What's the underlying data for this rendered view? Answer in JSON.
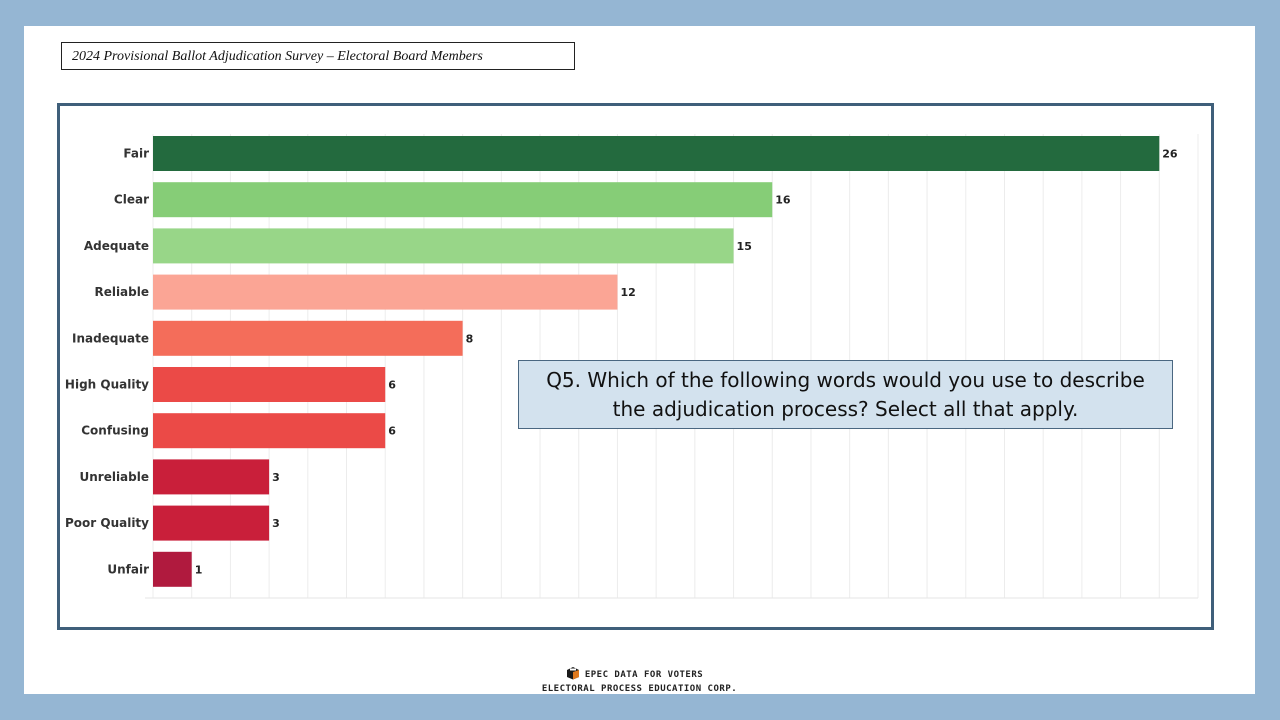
{
  "header": {
    "title": "2024 Provisional Ballot Adjudication Survey – Electoral Board Members"
  },
  "question": {
    "text": "Q5. Which of the following words would you use to describe the adjudication process? Select all that apply."
  },
  "footer": {
    "line1": "EPEC DATA FOR VOTERS",
    "line2": "ELECTORAL PROCESS EDUCATION CORP.",
    "logo_icon": "ballot-box-icon"
  },
  "chart_data": {
    "type": "bar",
    "orientation": "horizontal",
    "categories": [
      "Fair",
      "Clear",
      "Adequate",
      "Reliable",
      "Inadequate",
      "High Quality",
      "Confusing",
      "Unreliable",
      "Poor Quality",
      "Unfair"
    ],
    "values": [
      26,
      16,
      15,
      12,
      8,
      6,
      6,
      3,
      3,
      1
    ],
    "colors": [
      "#236a3e",
      "#86cd77",
      "#98d688",
      "#fba595",
      "#f46d5a",
      "#eb4a47",
      "#eb4a47",
      "#c91f3a",
      "#c91f3a",
      "#b01a3e"
    ],
    "xlim": [
      0,
      27
    ],
    "grid": true,
    "title": "",
    "xlabel": "",
    "ylabel": ""
  }
}
